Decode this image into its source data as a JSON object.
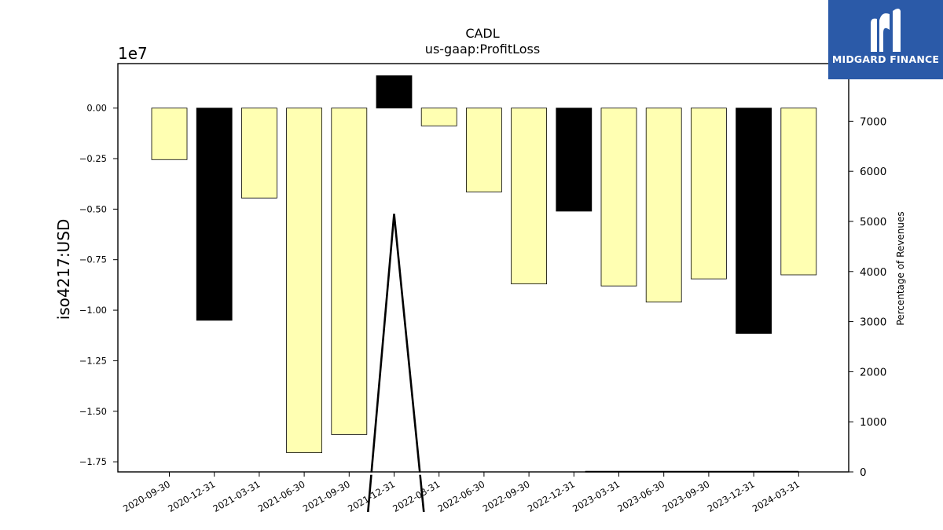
{
  "chart_data": {
    "type": "bar",
    "title": "CADL",
    "subtitle": "us-gaap:ProfitLoss",
    "ylabel": "iso4217:USD",
    "y_offset_label": "1e7",
    "y2label": "Percentage of Revenues",
    "categories": [
      "2020-09-30",
      "2020-12-31",
      "2021-03-31",
      "2021-06-30",
      "2021-09-30",
      "2021-12-31",
      "2022-03-31",
      "2022-06-30",
      "2022-09-30",
      "2022-12-31",
      "2023-03-31",
      "2023-06-30",
      "2023-09-30",
      "2023-12-31",
      "2024-03-31"
    ],
    "values": [
      -2550000,
      -10500000,
      -4450000,
      -17050000,
      -16150000,
      1600000,
      -880000,
      -4150000,
      -8700000,
      -5100000,
      -8800000,
      -9600000,
      -8450000,
      -11150000,
      -8250000
    ],
    "bar_colors": [
      "#ffffb2",
      "#000000",
      "#ffffb2",
      "#ffffb2",
      "#ffffb2",
      "#000000",
      "#ffffb2",
      "#ffffb2",
      "#ffffb2",
      "#000000",
      "#ffffb2",
      "#ffffb2",
      "#ffffb2",
      "#000000",
      "#ffffb2"
    ],
    "yticks": [
      0.0,
      -0.25,
      -0.5,
      -0.75,
      -1.0,
      -1.25,
      -1.5,
      -1.75
    ],
    "ytick_labels": [
      "0.00",
      "−0.25",
      "−0.50",
      "−0.75",
      "−1.00",
      "−1.25",
      "−1.50",
      "−1.75"
    ],
    "ylim": [
      -18000000.0,
      2200000.0
    ],
    "y2ticks": [
      0,
      1000,
      2000,
      3000,
      4000,
      5000,
      6000,
      7000
    ],
    "y2lim": [
      0,
      8150
    ],
    "line_series": {
      "name": "Percentage of Revenues",
      "color": "#000000",
      "segments": [
        [
          [
            4.42,
            -800
          ],
          [
            5.0,
            5150
          ],
          [
            5.66,
            -800
          ]
        ],
        [
          [
            9.25,
            0
          ],
          [
            14.0,
            0
          ]
        ]
      ]
    },
    "grid": false
  },
  "logo": {
    "text": "MIDGARD FINANCE",
    "background": "#2b5aa8"
  }
}
